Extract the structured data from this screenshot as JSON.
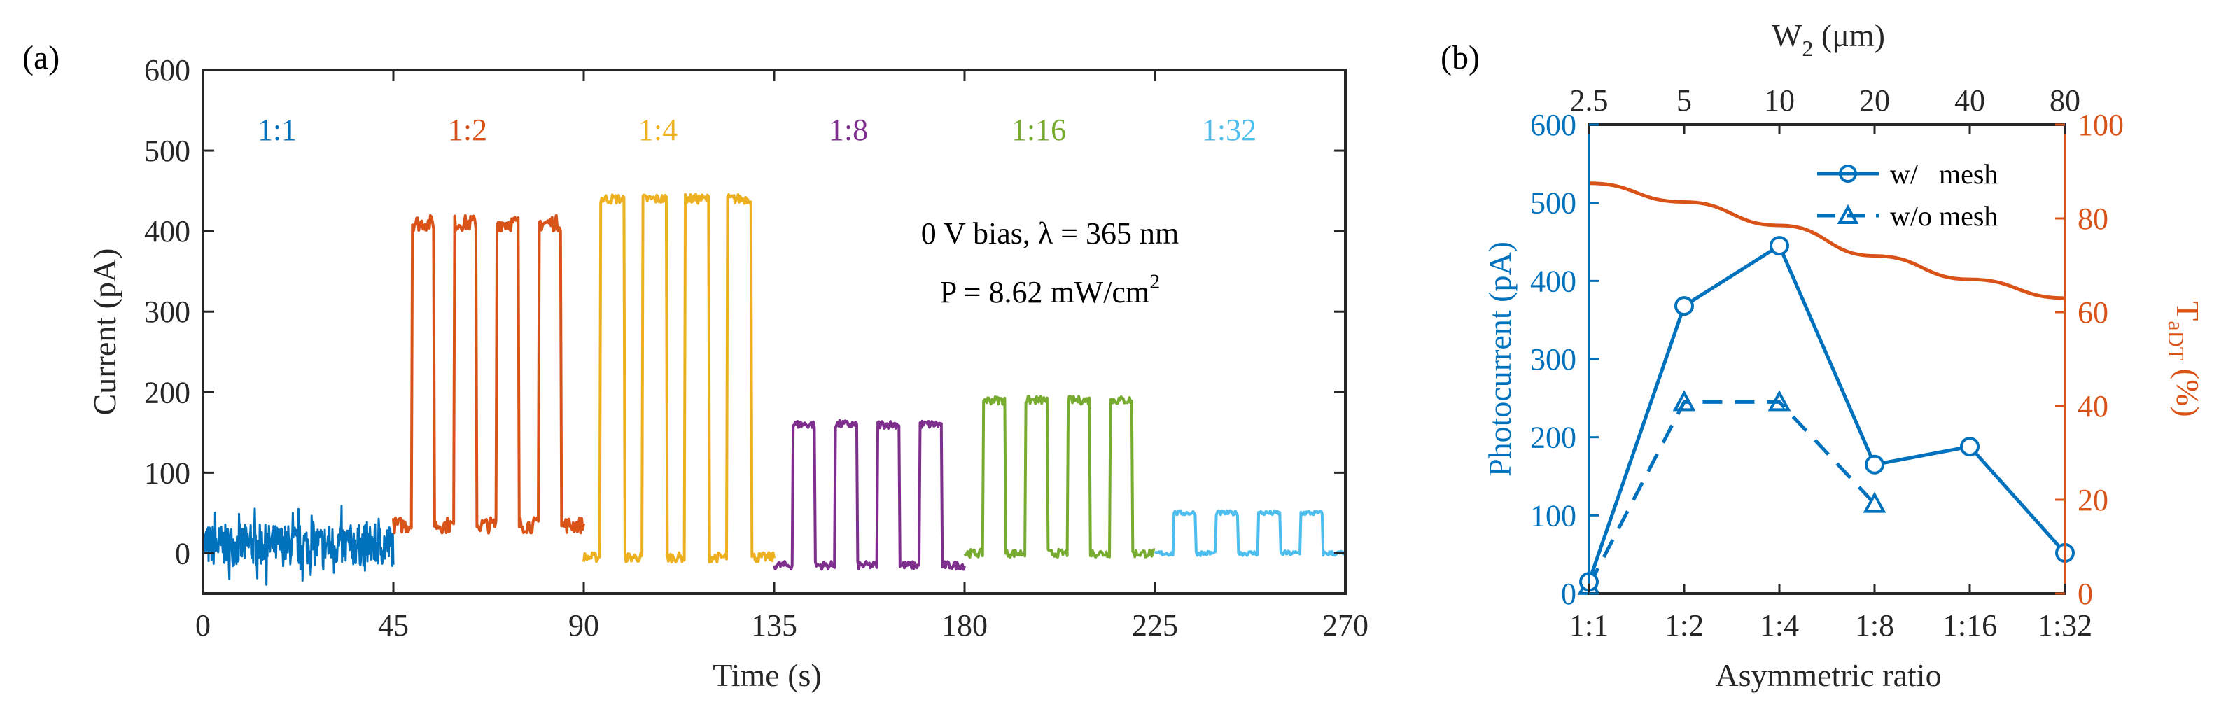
{
  "figure": {
    "panel_a_label": "(a)",
    "panel_b_label": "(b)"
  },
  "colors": {
    "axis": "#262626",
    "blue": "#0072BD",
    "orange": "#D95319",
    "yellow": "#EDB120",
    "purple": "#7E2F8E",
    "green": "#77AC30",
    "cyan": "#4DBEEE"
  },
  "chart_data": [
    {
      "type": "line",
      "title": "",
      "xlabel": "Time (s)",
      "ylabel": "Current (pA)",
      "xlim": [
        0,
        270
      ],
      "ylim": [
        -50,
        600
      ],
      "xticks": [
        0,
        45,
        90,
        135,
        180,
        225,
        270
      ],
      "yticks": [
        0,
        100,
        200,
        300,
        400,
        500,
        600
      ],
      "annotation_line1": "0 V bias, λ = 365 nm",
      "annotation_line2_prefix": "P = 8.62 mW/cm",
      "annotation_line2_sup": "2",
      "series": [
        {
          "name": "1:1",
          "color": "#0072BD",
          "t_start": 0,
          "t_end": 45,
          "low": 10,
          "high": 10,
          "noise": 26,
          "on_times": []
        },
        {
          "name": "1:2",
          "color": "#D95319",
          "t_start": 45,
          "t_end": 90,
          "low": 35,
          "high": 410,
          "noise": 10,
          "on_times": [
            [
              49.5,
              54.5
            ],
            [
              59.5,
              64.5
            ],
            [
              69.5,
              74.5
            ],
            [
              79.5,
              84.5
            ]
          ]
        },
        {
          "name": "1:4",
          "color": "#EDB120",
          "t_start": 90,
          "t_end": 135,
          "low": -5,
          "high": 440,
          "noise": 6,
          "on_times": [
            [
              94,
              99.5
            ],
            [
              104,
              109.5
            ],
            [
              114,
              119.5
            ],
            [
              124,
              129.5
            ]
          ]
        },
        {
          "name": "1:8",
          "color": "#7E2F8E",
          "t_start": 135,
          "t_end": 180,
          "low": -15,
          "high": 160,
          "noise": 5,
          "on_times": [
            [
              139.5,
              144.5
            ],
            [
              149.5,
              154.5
            ],
            [
              159.5,
              164.5
            ],
            [
              169.5,
              174.5
            ]
          ]
        },
        {
          "name": "1:16",
          "color": "#77AC30",
          "t_start": 180,
          "t_end": 225,
          "low": 0,
          "high": 190,
          "noise": 5,
          "on_times": [
            [
              184.5,
              189.5
            ],
            [
              194.5,
              199.5
            ],
            [
              204.5,
              209.5
            ],
            [
              214.5,
              219.5
            ]
          ]
        },
        {
          "name": "1:32",
          "color": "#4DBEEE",
          "t_start": 225,
          "t_end": 270,
          "low": 0,
          "high": 50,
          "noise": 3,
          "on_times": [
            [
              229.5,
              234.5
            ],
            [
              239.5,
              244.5
            ],
            [
              249.5,
              254.5
            ],
            [
              259.5,
              264.5
            ]
          ]
        }
      ]
    },
    {
      "type": "line",
      "title": "",
      "xlabel": "Asymmetric ratio",
      "ylabel_left": "Photocurrent (pA)",
      "ylabel_right_main": "T",
      "ylabel_right_sub": "aDT",
      "ylabel_right_suffix": " (%)",
      "xlabel_top_prefix": "W",
      "xlabel_top_sub": "2",
      "xlabel_top_suffix": " (μm)",
      "categories": [
        "1:1",
        "1:2",
        "1:4",
        "1:8",
        "1:16",
        "1:32"
      ],
      "top_ticks": [
        "2.5",
        "5",
        "10",
        "20",
        "40",
        "80"
      ],
      "ylim_left": [
        0,
        600
      ],
      "yticks_left": [
        0,
        100,
        200,
        300,
        400,
        500,
        600
      ],
      "ylim_right": [
        0,
        100
      ],
      "yticks_right": [
        0,
        20,
        40,
        60,
        80,
        100
      ],
      "series": [
        {
          "name": "w/   mesh",
          "axis": "left",
          "color": "#0072BD",
          "style": "solid",
          "marker": "circle",
          "values": [
            15,
            368,
            445,
            165,
            188,
            52
          ]
        },
        {
          "name": "w/o mesh",
          "axis": "left",
          "color": "#0072BD",
          "style": "dashed",
          "marker": "triangle",
          "values": [
            10,
            245,
            245,
            115,
            null,
            null
          ]
        },
        {
          "name": "TaDT",
          "axis": "right",
          "color": "#D95319",
          "style": "solid",
          "marker": "none",
          "values": [
            87.5,
            83.5,
            78.5,
            72,
            67,
            63
          ]
        }
      ]
    }
  ]
}
